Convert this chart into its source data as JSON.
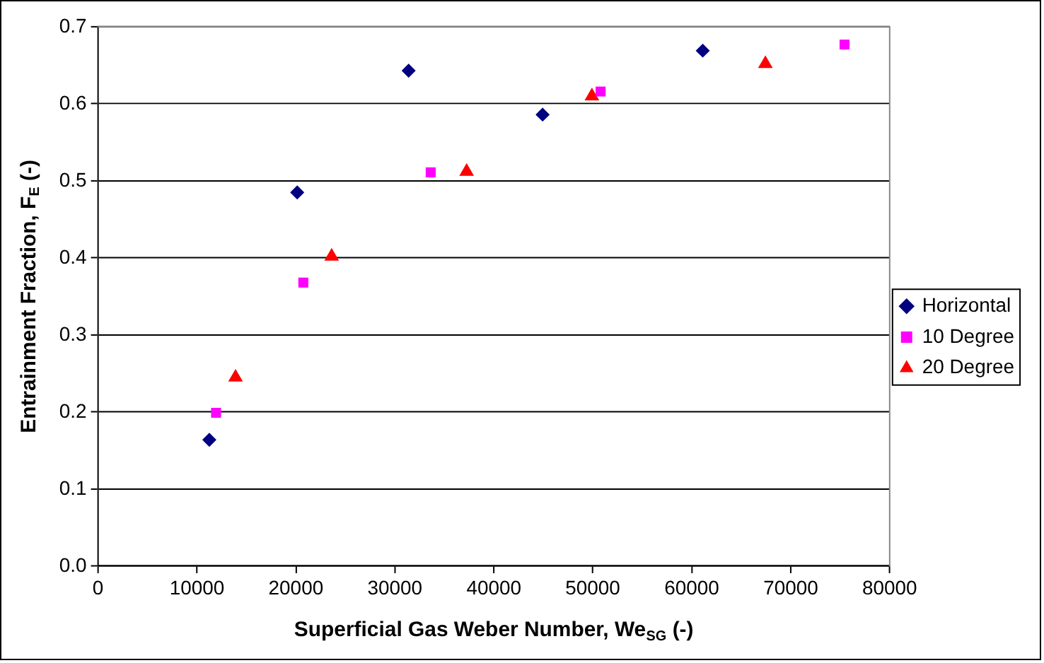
{
  "chart_data": {
    "type": "scatter",
    "xlabel": "Superficial Gas Weber Number, We$_{SG}$ (-)",
    "ylabel": "Entrainment Fraction, F$_{E}$ (-)",
    "xlim": [
      0,
      80000
    ],
    "xticks": [
      0,
      10000,
      20000,
      30000,
      40000,
      50000,
      60000,
      70000,
      80000
    ],
    "ylim": [
      0,
      0.7
    ],
    "yticks": [
      {
        "value": 0,
        "label": "0.0"
      },
      0.1,
      0.2,
      0.3,
      0.4,
      0.5,
      0.6,
      0.7
    ],
    "grid": "y",
    "legend": "right",
    "series": [
      {
        "name": "Horizontal",
        "color": "#000080",
        "marker": "diamond",
        "x": [
          11250,
          20130,
          31390,
          44930,
          61110
        ],
        "values": [
          0.164,
          0.485,
          0.643,
          0.586,
          0.669
        ]
      },
      {
        "name": "10 Degree",
        "color": "#ff00ff",
        "marker": "square",
        "x": [
          11930,
          20750,
          33620,
          50790,
          75440
        ],
        "values": [
          0.199,
          0.368,
          0.511,
          0.616,
          0.677
        ]
      },
      {
        "name": "20 Degree",
        "color": "#ff0000",
        "marker": "triangle",
        "x": [
          13900,
          23610,
          37250,
          49910,
          67440
        ],
        "values": [
          0.245,
          0.402,
          0.512,
          0.61,
          0.652
        ]
      }
    ]
  }
}
